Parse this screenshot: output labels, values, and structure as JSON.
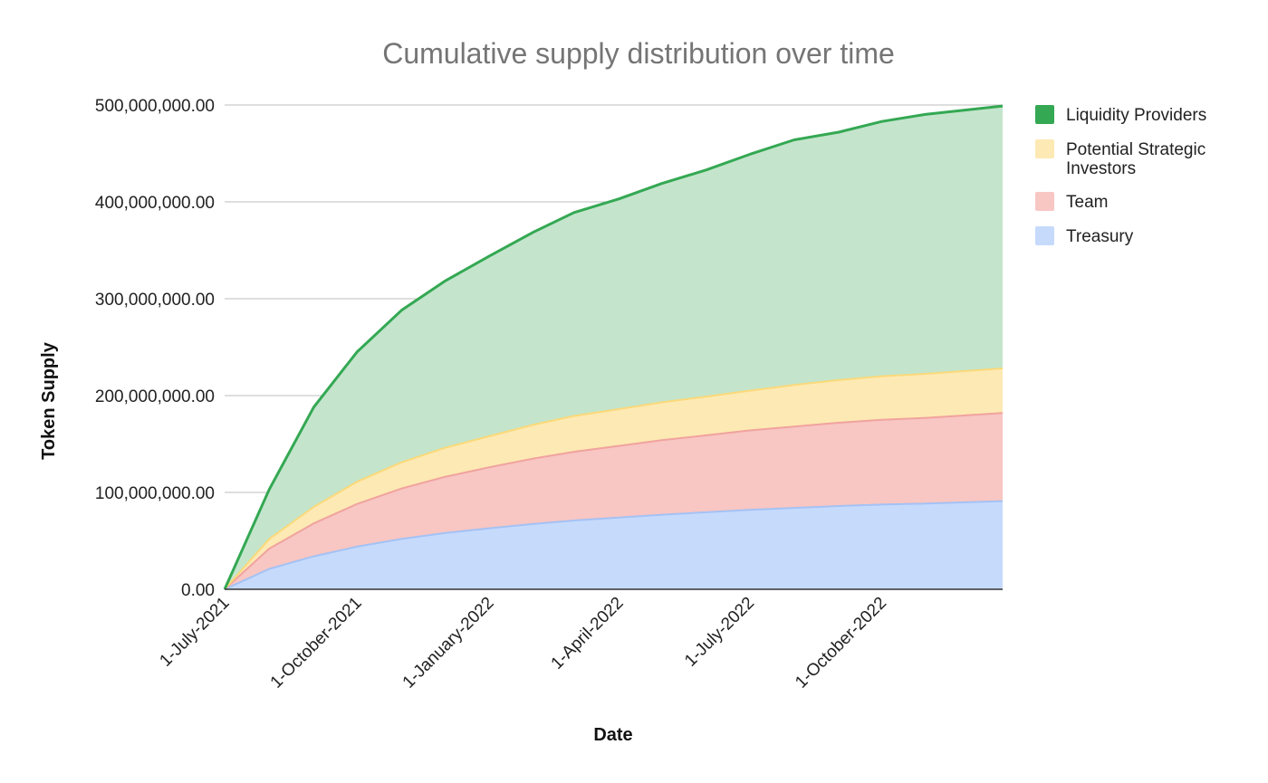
{
  "chart_data": {
    "type": "area",
    "stacked": true,
    "title": "Cumulative supply distribution over time",
    "xlabel": "Date",
    "ylabel": "Token Supply",
    "ylim": [
      0,
      500000000
    ],
    "yticks": [
      {
        "value": 0,
        "label": "0.00"
      },
      {
        "value": 100000000,
        "label": "100,000,000.00"
      },
      {
        "value": 200000000,
        "label": "200,000,000.00"
      },
      {
        "value": 300000000,
        "label": "300,000,000.00"
      },
      {
        "value": 400000000,
        "label": "400,000,000.00"
      },
      {
        "value": 500000000,
        "label": "500,000,000.00"
      }
    ],
    "xticks": [
      {
        "value": "2021-07-01",
        "label": "1-July-2021"
      },
      {
        "value": "2021-10-01",
        "label": "1-October-2021"
      },
      {
        "value": "2022-01-01",
        "label": "1-January-2022"
      },
      {
        "value": "2022-04-01",
        "label": "1-April-2022"
      },
      {
        "value": "2022-07-01",
        "label": "1-July-2022"
      },
      {
        "value": "2022-10-01",
        "label": "1-October-2022"
      }
    ],
    "xlim": [
      "2021-07-01",
      "2022-12-24"
    ],
    "grid": true,
    "legend_position": "right",
    "x": [
      "2021-07-01",
      "2021-08-01",
      "2021-09-01",
      "2021-10-01",
      "2021-11-01",
      "2021-12-01",
      "2022-01-01",
      "2022-02-01",
      "2022-03-01",
      "2022-04-01",
      "2022-05-01",
      "2022-06-01",
      "2022-07-01",
      "2022-08-01",
      "2022-09-01",
      "2022-10-01",
      "2022-11-01",
      "2022-12-24"
    ],
    "series": [
      {
        "name": "Treasury",
        "color": "#c6dafc",
        "line": "#a4c2f4",
        "values": [
          0,
          21000000,
          34000000,
          44000000,
          52000000,
          58000000,
          63000000,
          67500000,
          71000000,
          74000000,
          77000000,
          79500000,
          82000000,
          84000000,
          86000000,
          87500000,
          88500000,
          91000000
        ]
      },
      {
        "name": "Team",
        "color": "#f8c6c3",
        "line": "#f0a39e",
        "values": [
          0,
          21000000,
          34000000,
          44000000,
          52000000,
          58000000,
          63000000,
          67500000,
          71000000,
          74000000,
          77000000,
          79500000,
          82000000,
          84000000,
          86000000,
          87500000,
          88500000,
          91000000
        ]
      },
      {
        "name": "Potential Strategic Investors",
        "color": "#fde9b3",
        "line": "#fbd97a",
        "values": [
          0,
          10000000,
          17000000,
          23000000,
          27000000,
          30000000,
          32000000,
          35000000,
          37000000,
          38000000,
          39000000,
          40000000,
          41000000,
          43000000,
          44000000,
          45000000,
          45500000,
          46000000
        ]
      },
      {
        "name": "Liquidity Providers",
        "color": "#c4e5cc",
        "line": "#34a853",
        "values": [
          0,
          51000000,
          103000000,
          134000000,
          157000000,
          172000000,
          186000000,
          199000000,
          210000000,
          217000000,
          226000000,
          234000000,
          244000000,
          253000000,
          256000000,
          263000000,
          268000000,
          271000000
        ]
      }
    ]
  },
  "legend": [
    {
      "label_lines": [
        "Liquidity Providers"
      ],
      "color": "#34a853"
    },
    {
      "label_lines": [
        "Potential Strategic",
        "Investors"
      ],
      "color": "#fde9b3"
    },
    {
      "label_lines": [
        "Team"
      ],
      "color": "#f8c6c3"
    },
    {
      "label_lines": [
        "Treasury"
      ],
      "color": "#c6dafc"
    }
  ]
}
